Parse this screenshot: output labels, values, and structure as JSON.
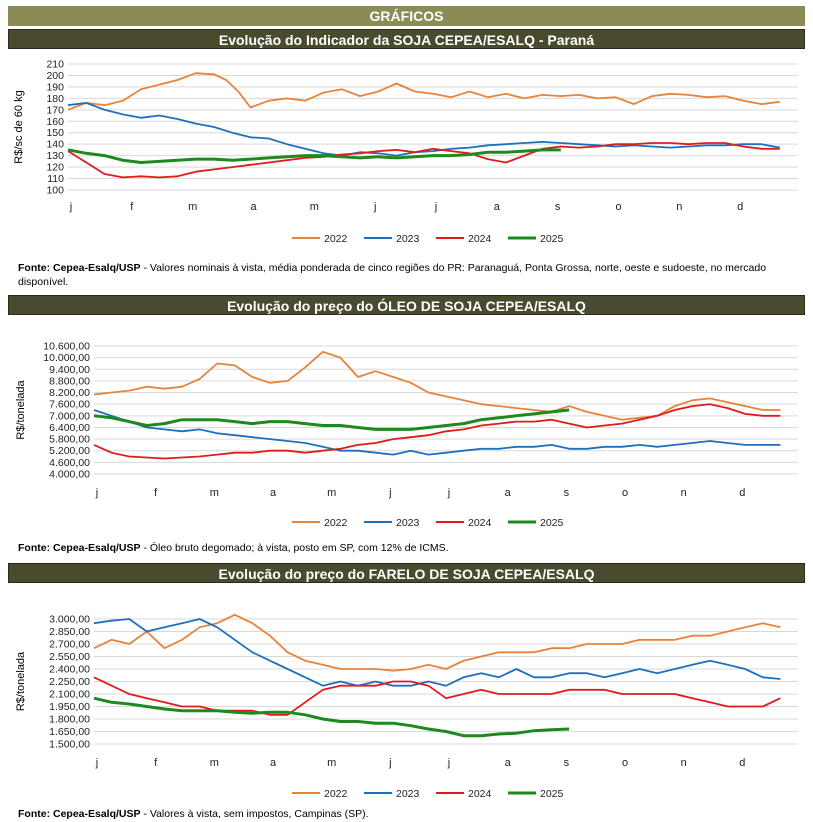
{
  "header": {
    "title": "GRÁFICOS"
  },
  "months": [
    "j",
    "f",
    "m",
    "a",
    "m",
    "j",
    "j",
    "a",
    "s",
    "o",
    "n",
    "d"
  ],
  "colors": {
    "2022": "#e8833a",
    "2023": "#1f6fbf",
    "2024": "#e01b1b",
    "2025": "#1e8a1e"
  },
  "chart_data": [
    {
      "type": "line",
      "title": "Evolução do Indicador da SOJA CEPEA/ESALQ - Paraná",
      "ylabel": "R$/sc de 60 kg",
      "ylim": [
        100,
        210
      ],
      "yticks": [
        "100",
        "110",
        "120",
        "130",
        "140",
        "150",
        "160",
        "170",
        "180",
        "190",
        "200",
        "210"
      ],
      "grid": true,
      "legend": "bottom",
      "source_bold": "Fonte: Cepea-Esalq/USP",
      "source_text": " - Valores nominais à vista, média ponderada de cinco regiões do PR: Paranaguá, Ponta Grossa, norte, oeste e sudoeste, no mercado disponível.",
      "series": [
        {
          "name": "2022",
          "x": [
            0,
            0.3,
            0.6,
            0.9,
            1.2,
            1.5,
            1.8,
            2.1,
            2.4,
            2.6,
            2.8,
            3.0,
            3.3,
            3.6,
            3.9,
            4.2,
            4.5,
            4.8,
            5.1,
            5.4,
            5.7,
            6.0,
            6.3,
            6.6,
            6.9,
            7.2,
            7.5,
            7.8,
            8.1,
            8.4,
            8.7,
            9.0,
            9.3,
            9.6,
            9.9,
            10.2,
            10.5,
            10.8,
            11.1,
            11.4,
            11.7
          ],
          "values": [
            170,
            176,
            174,
            178,
            188,
            192,
            196,
            202,
            201,
            196,
            186,
            172,
            178,
            180,
            178,
            185,
            188,
            182,
            186,
            193,
            186,
            184,
            181,
            186,
            181,
            184,
            180,
            183,
            182,
            183,
            180,
            181,
            175,
            182,
            184,
            183,
            181,
            182,
            178,
            175,
            177
          ]
        },
        {
          "name": "2023",
          "x": [
            0,
            0.3,
            0.6,
            0.9,
            1.2,
            1.5,
            1.8,
            2.1,
            2.4,
            2.7,
            3.0,
            3.3,
            3.6,
            3.9,
            4.2,
            4.5,
            4.8,
            5.1,
            5.4,
            5.7,
            6.0,
            6.3,
            6.6,
            6.9,
            7.2,
            7.5,
            7.8,
            8.1,
            8.4,
            8.7,
            9.0,
            9.3,
            9.6,
            9.9,
            10.2,
            10.5,
            10.8,
            11.1,
            11.4,
            11.7
          ],
          "values": [
            174,
            176,
            170,
            166,
            163,
            165,
            162,
            158,
            155,
            150,
            146,
            145,
            140,
            136,
            132,
            130,
            133,
            132,
            130,
            133,
            134,
            136,
            137,
            139,
            140,
            141,
            142,
            141,
            140,
            139,
            138,
            139,
            138,
            137,
            138,
            139,
            139,
            140,
            140,
            137
          ]
        },
        {
          "name": "2024",
          "x": [
            0,
            0.3,
            0.6,
            0.9,
            1.2,
            1.5,
            1.8,
            2.1,
            2.4,
            2.7,
            3.0,
            3.3,
            3.6,
            3.9,
            4.2,
            4.5,
            4.8,
            5.1,
            5.4,
            5.7,
            6.0,
            6.3,
            6.6,
            6.9,
            7.2,
            7.5,
            7.8,
            8.1,
            8.4,
            8.7,
            9.0,
            9.3,
            9.6,
            9.9,
            10.2,
            10.5,
            10.8,
            11.1,
            11.4,
            11.7
          ],
          "values": [
            134,
            124,
            114,
            111,
            112,
            111,
            112,
            116,
            118,
            120,
            122,
            124,
            126,
            128,
            129,
            131,
            132,
            134,
            135,
            133,
            136,
            134,
            132,
            127,
            124,
            130,
            136,
            138,
            137,
            138,
            140,
            140,
            141,
            141,
            140,
            141,
            141,
            138,
            136,
            136
          ]
        },
        {
          "name": "2025",
          "x": [
            0,
            0.3,
            0.6,
            0.9,
            1.2,
            1.5,
            1.8,
            2.1,
            2.4,
            2.7,
            3.0,
            3.3,
            3.6,
            3.9,
            4.2,
            4.5,
            4.8,
            5.1,
            5.4,
            5.7,
            6.0,
            6.3,
            6.6,
            6.9,
            7.2,
            7.5,
            7.8,
            8.1
          ],
          "values": [
            135,
            132,
            130,
            126,
            124,
            125,
            126,
            127,
            127,
            126,
            127,
            128,
            129,
            130,
            130,
            129,
            128,
            129,
            128,
            129,
            130,
            130,
            131,
            133,
            133,
            134,
            135,
            135
          ]
        }
      ]
    },
    {
      "type": "line",
      "title": "Evolução do preço do ÓLEO DE SOJA CEPEA/ESALQ",
      "ylabel": "R$/tonelada",
      "ylim": [
        4000,
        10600
      ],
      "yticks": [
        "4.000,00",
        "4.600,00",
        "5.200,00",
        "5.800,00",
        "6.400,00",
        "7.000,00",
        "7.600,00",
        "8.200,00",
        "8.800,00",
        "9.400,00",
        "10.000,00",
        "10.600,00"
      ],
      "grid": true,
      "legend": "bottom",
      "source_bold": "Fonte: Cepea-Esalq/USP",
      "source_text": " - Óleo bruto degomado; à vista, posto em SP, com 12% de ICMS.",
      "series": [
        {
          "name": "2022",
          "x": [
            0,
            0.3,
            0.6,
            0.9,
            1.2,
            1.5,
            1.8,
            2.1,
            2.4,
            2.7,
            3.0,
            3.3,
            3.6,
            3.9,
            4.2,
            4.5,
            4.8,
            5.1,
            5.4,
            5.7,
            6.0,
            6.3,
            6.6,
            6.9,
            7.2,
            7.5,
            7.8,
            8.1,
            8.4,
            8.7,
            9.0,
            9.3,
            9.6,
            9.9,
            10.2,
            10.5,
            10.8,
            11.1,
            11.4,
            11.7
          ],
          "values": [
            8100,
            8200,
            8300,
            8500,
            8400,
            8500,
            8900,
            9700,
            9600,
            9000,
            8700,
            8800,
            9500,
            10300,
            10000,
            9000,
            9300,
            9000,
            8700,
            8200,
            8000,
            7800,
            7600,
            7500,
            7400,
            7300,
            7200,
            7500,
            7200,
            7000,
            6800,
            6900,
            7000,
            7500,
            7800,
            7900,
            7700,
            7500,
            7300,
            7300
          ]
        },
        {
          "name": "2023",
          "x": [
            0,
            0.3,
            0.6,
            0.9,
            1.2,
            1.5,
            1.8,
            2.1,
            2.4,
            2.7,
            3.0,
            3.3,
            3.6,
            3.9,
            4.2,
            4.5,
            4.8,
            5.1,
            5.4,
            5.7,
            6.0,
            6.3,
            6.6,
            6.9,
            7.2,
            7.5,
            7.8,
            8.1,
            8.4,
            8.7,
            9.0,
            9.3,
            9.6,
            9.9,
            10.2,
            10.5,
            10.8,
            11.1,
            11.4,
            11.7
          ],
          "values": [
            7300,
            7000,
            6700,
            6400,
            6300,
            6200,
            6300,
            6100,
            6000,
            5900,
            5800,
            5700,
            5600,
            5400,
            5200,
            5200,
            5100,
            5000,
            5200,
            5000,
            5100,
            5200,
            5300,
            5300,
            5400,
            5400,
            5500,
            5300,
            5300,
            5400,
            5400,
            5500,
            5400,
            5500,
            5600,
            5700,
            5600,
            5500,
            5500,
            5500
          ]
        },
        {
          "name": "2024",
          "x": [
            0,
            0.3,
            0.6,
            0.9,
            1.2,
            1.5,
            1.8,
            2.1,
            2.4,
            2.7,
            3.0,
            3.3,
            3.6,
            3.9,
            4.2,
            4.5,
            4.8,
            5.1,
            5.4,
            5.7,
            6.0,
            6.3,
            6.6,
            6.9,
            7.2,
            7.5,
            7.8,
            8.1,
            8.4,
            8.7,
            9.0,
            9.3,
            9.6,
            9.9,
            10.2,
            10.5,
            10.8,
            11.1,
            11.4,
            11.7
          ],
          "values": [
            5500,
            5100,
            4900,
            4850,
            4800,
            4850,
            4900,
            5000,
            5100,
            5100,
            5200,
            5200,
            5100,
            5200,
            5300,
            5500,
            5600,
            5800,
            5900,
            6000,
            6200,
            6300,
            6500,
            6600,
            6700,
            6700,
            6800,
            6600,
            6400,
            6500,
            6600,
            6800,
            7000,
            7300,
            7500,
            7600,
            7400,
            7100,
            7000,
            7000
          ]
        },
        {
          "name": "2025",
          "x": [
            0,
            0.3,
            0.6,
            0.9,
            1.2,
            1.5,
            1.8,
            2.1,
            2.4,
            2.7,
            3.0,
            3.3,
            3.6,
            3.9,
            4.2,
            4.5,
            4.8,
            5.1,
            5.4,
            5.7,
            6.0,
            6.3,
            6.6,
            6.9,
            7.2,
            7.5,
            7.8,
            8.1
          ],
          "values": [
            7000,
            6900,
            6700,
            6500,
            6600,
            6800,
            6800,
            6800,
            6700,
            6600,
            6700,
            6700,
            6600,
            6500,
            6500,
            6400,
            6300,
            6300,
            6300,
            6400,
            6500,
            6600,
            6800,
            6900,
            7000,
            7100,
            7200,
            7300
          ]
        }
      ]
    },
    {
      "type": "line",
      "title": "Evolução do preço do FARELO DE SOJA CEPEA/ESALQ",
      "ylabel": "R$/tonelada",
      "ylim": [
        1500,
        3000
      ],
      "yticks": [
        "1.500,00",
        "1.650,00",
        "1.800,00",
        "1.950,00",
        "2.100,00",
        "2.250,00",
        "2.400,00",
        "2.550,00",
        "2.700,00",
        "2.850,00",
        "3.000,00"
      ],
      "grid": true,
      "legend": "bottom",
      "source_bold": "Fonte: Cepea-Esalq/USP",
      "source_text": " - Valores à vista, sem impostos, Campinas (SP).",
      "series": [
        {
          "name": "2022",
          "x": [
            0,
            0.3,
            0.6,
            0.9,
            1.2,
            1.5,
            1.8,
            2.1,
            2.4,
            2.7,
            3.0,
            3.3,
            3.6,
            3.9,
            4.2,
            4.5,
            4.8,
            5.1,
            5.4,
            5.7,
            6.0,
            6.3,
            6.6,
            6.9,
            7.2,
            7.5,
            7.8,
            8.1,
            8.4,
            8.7,
            9.0,
            9.3,
            9.6,
            9.9,
            10.2,
            10.5,
            10.8,
            11.1,
            11.4,
            11.7
          ],
          "values": [
            2650,
            2750,
            2700,
            2850,
            2650,
            2750,
            2900,
            2950,
            3050,
            2950,
            2800,
            2600,
            2500,
            2450,
            2400,
            2400,
            2400,
            2380,
            2400,
            2450,
            2400,
            2500,
            2550,
            2600,
            2600,
            2600,
            2650,
            2650,
            2700,
            2700,
            2700,
            2750,
            2750,
            2750,
            2800,
            2800,
            2850,
            2900,
            2950,
            2900
          ]
        },
        {
          "name": "2023",
          "x": [
            0,
            0.3,
            0.6,
            0.9,
            1.2,
            1.5,
            1.8,
            2.1,
            2.4,
            2.7,
            3.0,
            3.3,
            3.6,
            3.9,
            4.2,
            4.5,
            4.8,
            5.1,
            5.4,
            5.7,
            6.0,
            6.3,
            6.6,
            6.9,
            7.2,
            7.5,
            7.8,
            8.1,
            8.4,
            8.7,
            9.0,
            9.3,
            9.6,
            9.9,
            10.2,
            10.5,
            10.8,
            11.1,
            11.4,
            11.7
          ],
          "values": [
            2950,
            2980,
            3000,
            2850,
            2900,
            2950,
            3000,
            2900,
            2750,
            2600,
            2500,
            2400,
            2300,
            2200,
            2250,
            2200,
            2250,
            2200,
            2200,
            2250,
            2200,
            2300,
            2350,
            2300,
            2400,
            2300,
            2300,
            2350,
            2350,
            2300,
            2350,
            2400,
            2350,
            2400,
            2450,
            2500,
            2450,
            2400,
            2300,
            2280
          ]
        },
        {
          "name": "2024",
          "x": [
            0,
            0.3,
            0.6,
            0.9,
            1.2,
            1.5,
            1.8,
            2.1,
            2.4,
            2.7,
            3.0,
            3.3,
            3.6,
            3.9,
            4.2,
            4.5,
            4.8,
            5.1,
            5.4,
            5.7,
            6.0,
            6.3,
            6.6,
            6.9,
            7.2,
            7.5,
            7.8,
            8.1,
            8.4,
            8.7,
            9.0,
            9.3,
            9.6,
            9.9,
            10.2,
            10.5,
            10.8,
            11.1,
            11.4,
            11.7
          ],
          "values": [
            2300,
            2200,
            2100,
            2050,
            2000,
            1950,
            1950,
            1900,
            1900,
            1900,
            1850,
            1850,
            2000,
            2150,
            2200,
            2200,
            2200,
            2250,
            2250,
            2200,
            2050,
            2100,
            2150,
            2100,
            2100,
            2100,
            2100,
            2150,
            2150,
            2150,
            2100,
            2100,
            2100,
            2100,
            2050,
            2000,
            1950,
            1950,
            1950,
            2050
          ]
        },
        {
          "name": "2025",
          "x": [
            0,
            0.3,
            0.6,
            0.9,
            1.2,
            1.5,
            1.8,
            2.1,
            2.4,
            2.7,
            3.0,
            3.3,
            3.6,
            3.9,
            4.2,
            4.5,
            4.8,
            5.1,
            5.4,
            5.7,
            6.0,
            6.3,
            6.6,
            6.9,
            7.2,
            7.5,
            7.8,
            8.1
          ],
          "values": [
            2050,
            2000,
            1980,
            1950,
            1920,
            1900,
            1900,
            1900,
            1880,
            1870,
            1880,
            1880,
            1850,
            1800,
            1770,
            1770,
            1750,
            1750,
            1720,
            1680,
            1650,
            1600,
            1600,
            1620,
            1630,
            1660,
            1670,
            1680
          ]
        }
      ]
    }
  ]
}
